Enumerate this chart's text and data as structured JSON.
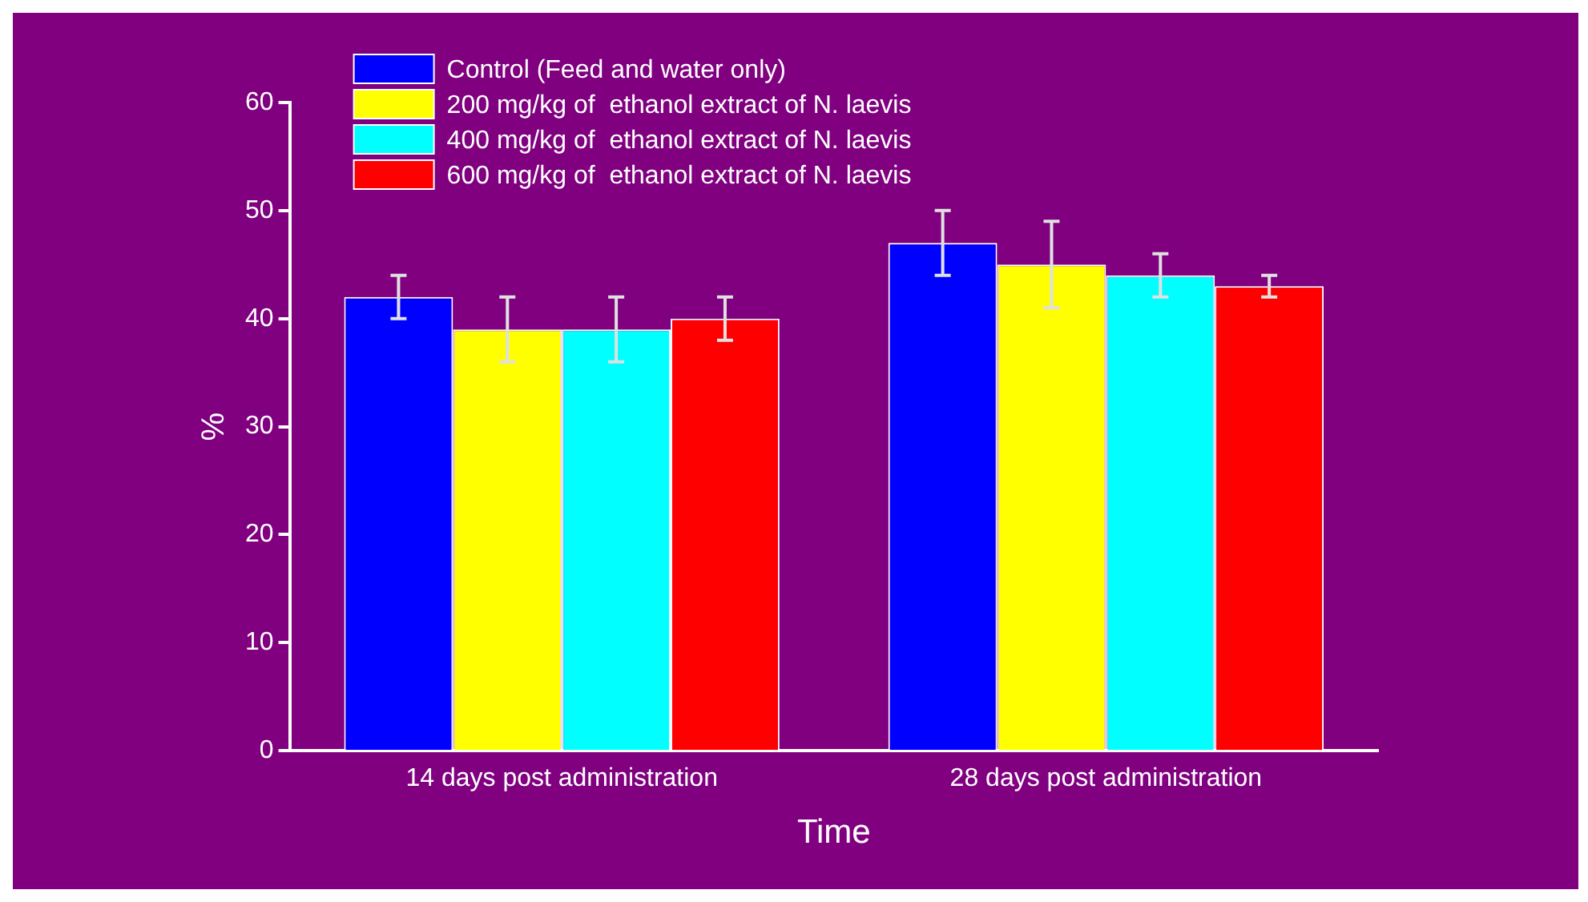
{
  "chart_data": {
    "type": "bar",
    "xlabel": "Time",
    "ylabel": "%",
    "categories": [
      "14 days post administration",
      "28 days post administration"
    ],
    "series": [
      {
        "name": "Control (Feed and water only)",
        "color": "#0000ff",
        "values": [
          42,
          47
        ],
        "errors": [
          2,
          3
        ]
      },
      {
        "name": "200 mg/kg of  ethanol extract of N. laevis",
        "color": "#ffff00",
        "values": [
          39,
          45
        ],
        "errors": [
          3,
          4
        ]
      },
      {
        "name": "400 mg/kg of  ethanol extract of N. laevis",
        "color": "#00ffff",
        "values": [
          39,
          44
        ],
        "errors": [
          3,
          2
        ]
      },
      {
        "name": "600 mg/kg of  ethanol extract of N. laevis",
        "color": "#ff0000",
        "values": [
          40,
          43
        ],
        "errors": [
          2,
          1
        ]
      }
    ],
    "ylim": [
      0,
      60
    ],
    "yticks": [
      0,
      10,
      20,
      30,
      40,
      50,
      60
    ],
    "grid": false,
    "legend": "top left"
  }
}
